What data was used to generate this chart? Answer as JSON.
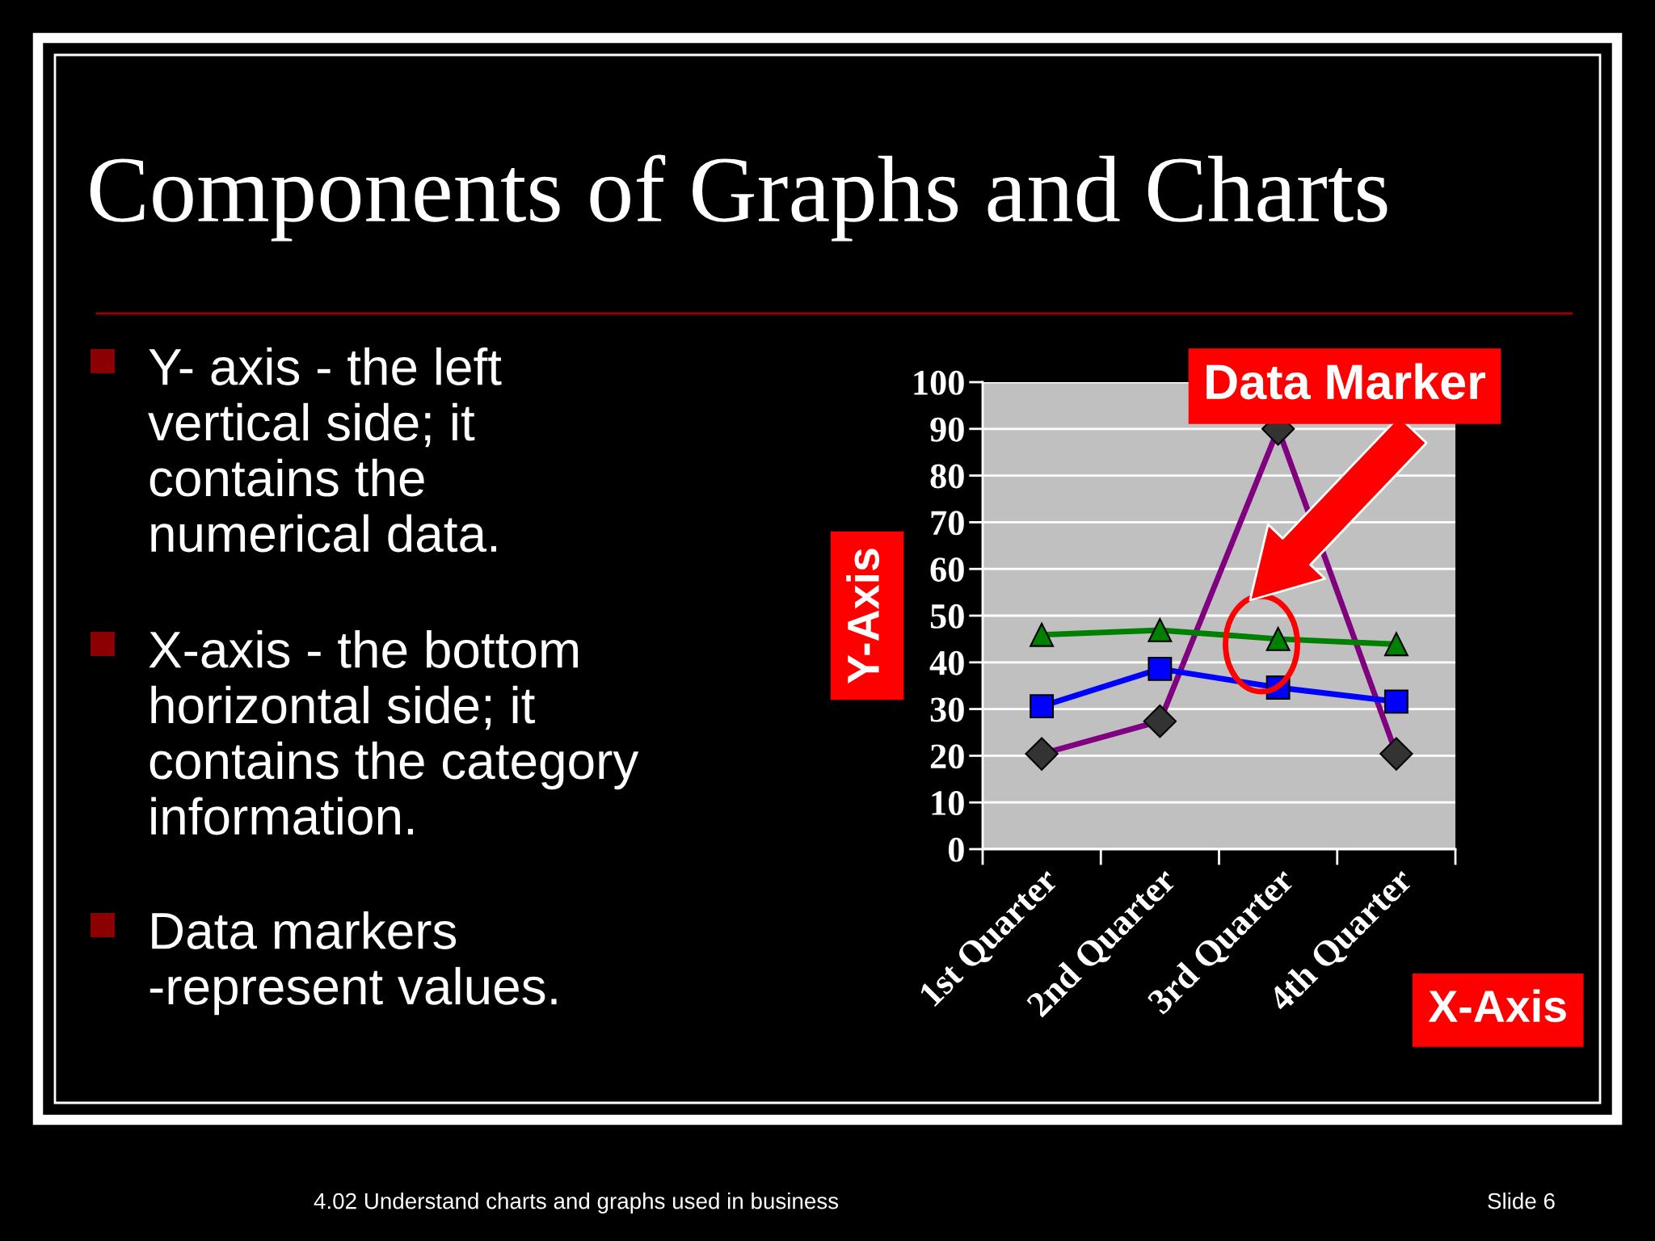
{
  "chart_data": {
    "type": "line",
    "title": "Components of Graphs and Charts",
    "categories": [
      "1st Quarter",
      "2nd Quarter",
      "3rd Quarter",
      "4th Quarter"
    ],
    "series": [
      {
        "color": "#800080",
        "marker": "diamond",
        "values": [
          20.4,
          27.4,
          90,
          20.4
        ]
      },
      {
        "color": "#0000ff",
        "marker": "square",
        "values": [
          30.6,
          38.6,
          34.6,
          31.6
        ]
      },
      {
        "color": "#008000",
        "marker": "triangle",
        "values": [
          45.9,
          46.9,
          45,
          43.9
        ]
      }
    ],
    "ylabel": "Y-Axis",
    "xlabel": "X-Axis",
    "ylim": [
      0,
      100
    ],
    "yticks": [
      0,
      10,
      20,
      30,
      40,
      50,
      60,
      70,
      80,
      90,
      100
    ],
    "grid": "y",
    "legend": false,
    "line_style": "solid",
    "annotations": [
      "Y- axis - the left\nvertical side; it\ncontains the\nnumerical data.",
      "X-axis - the bottom\nhorizontal side; it\ncontains the category\ninformation.",
      "Data markers\n-represent values.",
      "4.02 Understand charts and graphs used in business",
      "Slide 6",
      "Data Marker"
    ]
  }
}
